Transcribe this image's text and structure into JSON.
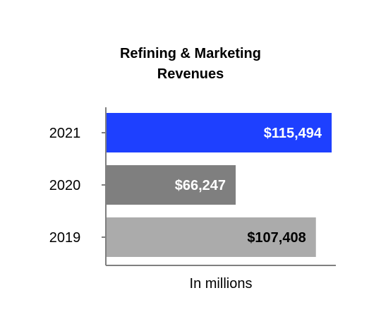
{
  "chart_data": {
    "type": "bar",
    "orientation": "horizontal",
    "title_lines": [
      "Refining & Marketing",
      "Revenues"
    ],
    "xlabel": "In millions",
    "ylabel": "",
    "categories": [
      "2021",
      "2020",
      "2019"
    ],
    "values": [
      115494,
      66247,
      107408
    ],
    "value_labels": [
      "$115,494",
      "$66,247",
      "$107,408"
    ],
    "xlim": [
      0,
      118000
    ],
    "grid": false,
    "legend": "none",
    "colors": [
      "#1e40ff",
      "#7f7f7f",
      "#ababab"
    ],
    "label_colors": [
      "#ffffff",
      "#ffffff",
      "#000000"
    ],
    "axis_color": "#7f7f7f"
  }
}
